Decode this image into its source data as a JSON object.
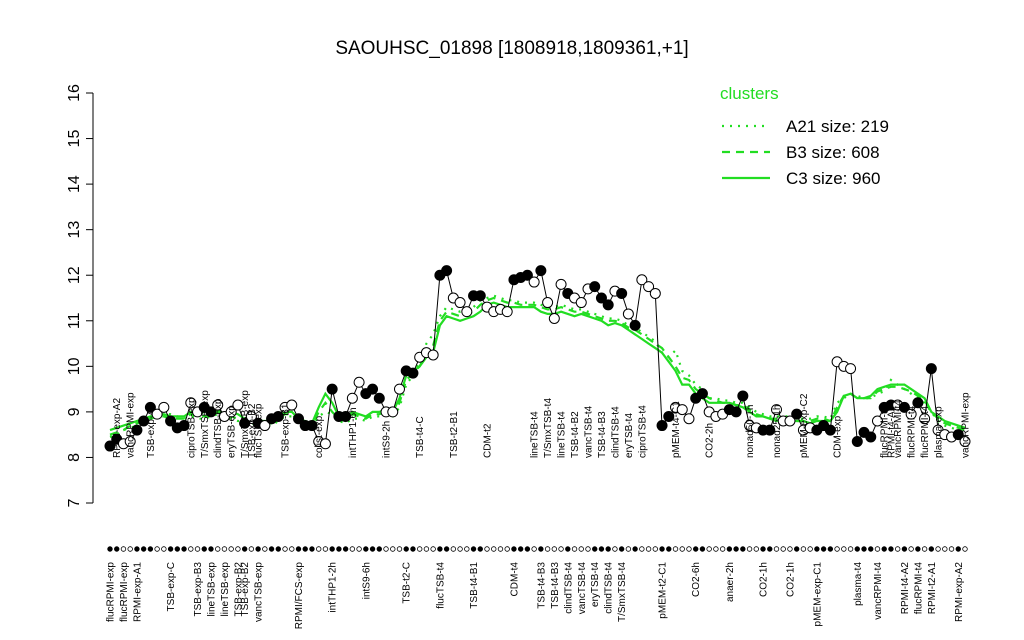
{
  "chart_data": {
    "type": "scatter",
    "title": "SAOUHSC_01898 [1808918,1809361,+1]",
    "ylim": [
      7,
      16
    ],
    "yticks": [
      7,
      8,
      9,
      10,
      11,
      12,
      13,
      14,
      15,
      16
    ],
    "legend_title": "clusters",
    "legend_position": "top-right",
    "top_labels": [
      null,
      "RPMI-exp-A2",
      null,
      "vancRPMI-exp",
      null,
      null,
      "TSB-exp-A",
      null,
      null,
      null,
      null,
      null,
      "ciproTSB-exp",
      null,
      "T/SmxTSB-exp",
      null,
      "clindTSB-exp",
      null,
      "eryTSB-exp",
      null,
      "T/SmxTSB-exp",
      "TSB-exp-B2",
      "flucTSB-exp",
      null,
      null,
      null,
      "TSB-exp-B1",
      null,
      null,
      null,
      null,
      "colist-exp",
      null,
      null,
      null,
      null,
      "intTHP1-6h",
      null,
      null,
      null,
      null,
      "intS9-2h",
      null,
      null,
      null,
      null,
      "TSB-t4-C",
      null,
      null,
      null,
      null,
      "TSB-t2-B1",
      null,
      null,
      null,
      null,
      "CDM-t2",
      null,
      null,
      null,
      null,
      null,
      null,
      "lineTSB-t4",
      null,
      "T/SmxTSB-t4",
      null,
      "lineTSB-t4",
      null,
      "TSB-t4-B2",
      null,
      "vancTSB-t4",
      null,
      "TSB-t4-B3",
      null,
      "clindTSB-t4",
      null,
      "eryTSB-t4",
      null,
      "ciproTSB-t4",
      null,
      null,
      null,
      null,
      "pMEM-t4-C1",
      null,
      null,
      null,
      null,
      "CO2-2h",
      null,
      null,
      null,
      null,
      null,
      "nonad50-1h",
      null,
      null,
      null,
      "nonad25-1h",
      null,
      null,
      null,
      "pMEM-exp-C2",
      null,
      null,
      null,
      null,
      "CDM-exp",
      null,
      null,
      null,
      null,
      null,
      null,
      "flucRPMI-t4",
      "RPMI-t4-A2",
      "vancRPMI-t4",
      null,
      "flucRPMI-t4",
      null,
      "flucRPMI-t4",
      null,
      "plasma-exp",
      null,
      null,
      null,
      "vancRPMI-exp"
    ],
    "bottom_labels": [
      "flucRPMI-exp",
      null,
      "flucRPMI-exp",
      null,
      "RPMI-exp-A1",
      null,
      null,
      null,
      null,
      "TSB-exp-C",
      null,
      null,
      null,
      "TSB-exp-B3",
      null,
      "lineTSB-exp",
      null,
      "lineTSB-exp",
      null,
      "TSB-exp-B2",
      "TSB-exp-B2",
      null,
      "vancTSB-exp",
      null,
      null,
      null,
      null,
      null,
      "RPMI/FCS-exp",
      null,
      null,
      null,
      null,
      "intTHP1-2h",
      null,
      null,
      null,
      null,
      "intS9-6h",
      null,
      null,
      null,
      null,
      null,
      "TSB-t2-C",
      null,
      null,
      null,
      null,
      "flucTSB-t4",
      null,
      null,
      null,
      null,
      "TSB-t4-B1",
      null,
      null,
      null,
      null,
      null,
      "CDM-t4",
      null,
      null,
      null,
      "TSB-t4-B3",
      null,
      "TSB-t4-B3",
      null,
      "clindTSB-t4",
      null,
      "vancTSB-t4",
      null,
      "eryTSB-t4",
      null,
      "clindTSB-t4",
      null,
      "T/SmxTSB-t4",
      null,
      null,
      null,
      null,
      null,
      "pMEM-t2-C1",
      null,
      null,
      null,
      null,
      "CO2-6h",
      null,
      null,
      null,
      null,
      "anaer-2h",
      null,
      null,
      null,
      null,
      "CO2-1h",
      null,
      null,
      null,
      "CO2-1h",
      null,
      null,
      null,
      "pMEM-exp-C1",
      null,
      null,
      null,
      null,
      null,
      "plasma-t4",
      null,
      null,
      "vancRPMI-t4",
      null,
      null,
      null,
      "RPMI-t4-A2",
      null,
      "flucRPMI-t4",
      null,
      "RPMI-t2-A1",
      null,
      null,
      null,
      "RPMI-exp-A2",
      null
    ],
    "values": [
      8.25,
      8.4,
      8.3,
      8.35,
      8.6,
      8.8,
      9.1,
      8.95,
      9.1,
      8.8,
      8.65,
      8.7,
      9.2,
      9.0,
      9.1,
      9.0,
      9.15,
      8.9,
      9.0,
      9.15,
      8.75,
      8.9,
      8.75,
      8.7,
      8.85,
      8.9,
      9.1,
      9.15,
      8.85,
      8.7,
      8.7,
      8.35,
      8.3,
      9.5,
      8.9,
      8.9,
      9.3,
      9.65,
      9.4,
      9.5,
      9.3,
      9.0,
      9.0,
      9.5,
      9.9,
      9.85,
      10.2,
      10.3,
      10.25,
      12.0,
      12.1,
      11.5,
      11.4,
      11.2,
      11.55,
      11.55,
      11.3,
      11.2,
      11.25,
      11.2,
      11.9,
      11.95,
      12.0,
      11.85,
      12.1,
      11.4,
      11.05,
      11.8,
      11.6,
      11.5,
      11.4,
      11.7,
      11.75,
      11.5,
      11.35,
      11.65,
      11.6,
      11.15,
      10.9,
      11.9,
      11.75,
      11.6,
      8.7,
      8.9,
      9.1,
      9.05,
      8.85,
      9.3,
      9.4,
      9.0,
      8.9,
      8.95,
      9.05,
      9.0,
      9.35,
      8.7,
      8.65,
      8.6,
      8.6,
      9.05,
      8.8,
      8.8,
      8.95,
      8.6,
      8.65,
      8.6,
      8.7,
      8.6,
      10.1,
      10.0,
      9.95,
      8.35,
      8.55,
      8.45,
      8.8,
      9.1,
      9.15,
      9.15,
      9.1,
      8.95,
      9.2,
      8.85,
      9.95,
      8.6,
      8.5,
      8.45,
      8.5,
      8.35
    ],
    "point_colors": [
      "black",
      "black",
      "white",
      "white",
      "black",
      "black",
      "black",
      "white",
      "white",
      "black",
      "black",
      "black",
      "white",
      "white",
      "black",
      "black",
      "white",
      "white",
      "white",
      "white",
      "black",
      "white",
      "black",
      "white",
      "black",
      "black",
      "white",
      "white",
      "black",
      "black",
      "black",
      "white",
      "white",
      "black",
      "black",
      "black",
      "white",
      "white",
      "black",
      "black",
      "black",
      "white",
      "white",
      "white",
      "black",
      "black",
      "white",
      "white",
      "white",
      "black",
      "black",
      "white",
      "white",
      "white",
      "black",
      "black",
      "white",
      "white",
      "white",
      "white",
      "black",
      "black",
      "black",
      "white",
      "black",
      "white",
      "white",
      "white",
      "black",
      "white",
      "white",
      "white",
      "black",
      "black",
      "black",
      "white",
      "black",
      "white",
      "black",
      "white",
      "white",
      "white",
      "black",
      "black",
      "white",
      "white",
      "white",
      "black",
      "black",
      "white",
      "white",
      "white",
      "black",
      "black",
      "black",
      "white",
      "white",
      "black",
      "black",
      "white",
      "white",
      "white",
      "black",
      "white",
      "white",
      "black",
      "black",
      "black",
      "white",
      "white",
      "white",
      "black",
      "black",
      "black",
      "white",
      "black",
      "black",
      "white",
      "black",
      "white",
      "black",
      "white",
      "black",
      "white",
      "white",
      "white",
      "black",
      "white"
    ],
    "series": [
      {
        "name": "A21 size: 219",
        "color": "#22dd22",
        "style": "dotted",
        "values": [
          8.45,
          8.5,
          8.6,
          8.65,
          8.7,
          8.8,
          8.85,
          8.9,
          8.95,
          8.95,
          8.9,
          8.85,
          8.9,
          8.85,
          8.85,
          8.9,
          8.95,
          8.85,
          8.85,
          8.8,
          8.8,
          8.75,
          8.7,
          8.7,
          8.7,
          8.8,
          8.9,
          8.9,
          8.75,
          8.7,
          8.7,
          8.9,
          9.0,
          8.95,
          8.8,
          8.75,
          8.85,
          8.85,
          8.8,
          8.9,
          8.9,
          8.95,
          8.9,
          9.1,
          9.6,
          9.8,
          10.1,
          10.5,
          10.7,
          11.1,
          11.3,
          11.25,
          11.2,
          11.25,
          11.3,
          11.45,
          11.5,
          11.55,
          11.5,
          11.45,
          11.45,
          11.4,
          11.4,
          11.4,
          11.35,
          11.3,
          11.3,
          11.35,
          11.3,
          11.25,
          11.25,
          11.2,
          11.15,
          11.1,
          11.05,
          11.05,
          11.0,
          10.9,
          10.85,
          10.75,
          10.65,
          10.55,
          10.3,
          10.2,
          10.35,
          9.9,
          9.8,
          9.6,
          9.5,
          9.3,
          9.3,
          9.25,
          9.25,
          9.2,
          9.2,
          9.1,
          9.0,
          8.95,
          8.9,
          8.9,
          8.9,
          8.9,
          8.85,
          8.85,
          8.85,
          8.9,
          8.9,
          8.85,
          9.2,
          9.3,
          9.4,
          9.35,
          9.3,
          9.3,
          9.4,
          9.45,
          9.7,
          9.6,
          9.5,
          9.4,
          9.3,
          9.2,
          9.0,
          8.8,
          8.7,
          8.65,
          8.6,
          8.55
        ]
      },
      {
        "name": "B3 size: 608",
        "color": "#22dd22",
        "style": "dashed",
        "values": [
          8.5,
          8.55,
          8.6,
          8.7,
          8.75,
          8.8,
          8.85,
          8.9,
          8.9,
          8.85,
          8.85,
          8.85,
          8.95,
          8.9,
          8.9,
          8.95,
          9.0,
          8.9,
          8.9,
          8.85,
          8.8,
          8.8,
          8.75,
          8.75,
          8.75,
          8.85,
          8.95,
          8.95,
          8.8,
          8.75,
          8.7,
          9.0,
          9.2,
          9.0,
          8.85,
          8.8,
          8.95,
          8.9,
          8.85,
          8.95,
          8.95,
          9.0,
          8.95,
          9.2,
          9.7,
          9.85,
          10.0,
          10.3,
          10.45,
          11.0,
          11.2,
          11.15,
          11.1,
          11.15,
          11.2,
          11.35,
          11.45,
          11.5,
          11.45,
          11.4,
          11.4,
          11.35,
          11.35,
          11.35,
          11.3,
          11.25,
          11.25,
          11.3,
          11.25,
          11.2,
          11.2,
          11.15,
          11.1,
          11.05,
          11.0,
          11.0,
          10.95,
          10.85,
          10.8,
          10.7,
          10.6,
          10.5,
          10.4,
          10.2,
          10.0,
          9.75,
          9.7,
          9.5,
          9.4,
          9.3,
          9.25,
          9.2,
          9.2,
          9.15,
          9.15,
          9.05,
          8.95,
          8.9,
          8.85,
          8.85,
          8.85,
          8.85,
          8.8,
          8.8,
          8.8,
          8.85,
          8.85,
          8.8,
          9.1,
          9.35,
          9.4,
          9.3,
          9.3,
          9.3,
          9.45,
          9.5,
          9.55,
          9.55,
          9.5,
          9.45,
          9.35,
          9.25,
          9.0,
          8.85,
          8.75,
          8.7,
          8.65,
          8.6
        ]
      },
      {
        "name": "C3 size: 960",
        "color": "#22dd22",
        "style": "solid",
        "values": [
          8.6,
          8.65,
          8.7,
          8.75,
          8.8,
          8.85,
          8.9,
          8.95,
          8.95,
          8.9,
          8.9,
          8.9,
          9.0,
          8.95,
          9.0,
          9.05,
          9.05,
          8.95,
          9.0,
          8.95,
          8.85,
          8.85,
          8.8,
          8.8,
          8.8,
          8.9,
          9.0,
          9.0,
          8.85,
          8.8,
          8.75,
          9.1,
          9.4,
          9.2,
          8.9,
          8.85,
          9.0,
          8.95,
          8.9,
          9.0,
          9.0,
          9.05,
          9.0,
          9.3,
          9.8,
          9.9,
          10.0,
          10.2,
          10.3,
          10.9,
          11.1,
          11.05,
          11.0,
          11.05,
          11.1,
          11.2,
          11.35,
          11.4,
          11.35,
          11.3,
          11.3,
          11.3,
          11.3,
          11.3,
          11.2,
          11.15,
          11.15,
          11.2,
          11.15,
          11.1,
          11.15,
          11.1,
          11.05,
          11.0,
          10.9,
          10.95,
          10.9,
          10.8,
          10.7,
          10.6,
          10.5,
          10.4,
          10.3,
          10.1,
          9.9,
          9.6,
          9.6,
          9.4,
          9.3,
          9.2,
          9.2,
          9.2,
          9.2,
          9.15,
          9.1,
          9.0,
          8.9,
          8.9,
          8.85,
          8.8,
          8.85,
          8.8,
          8.8,
          8.8,
          8.75,
          8.8,
          8.8,
          8.8,
          9.0,
          9.35,
          9.4,
          9.3,
          9.3,
          9.35,
          9.5,
          9.55,
          9.6,
          9.6,
          9.6,
          9.5,
          9.4,
          9.3,
          9.0,
          8.9,
          8.8,
          8.75,
          8.7,
          8.65
        ]
      }
    ]
  }
}
